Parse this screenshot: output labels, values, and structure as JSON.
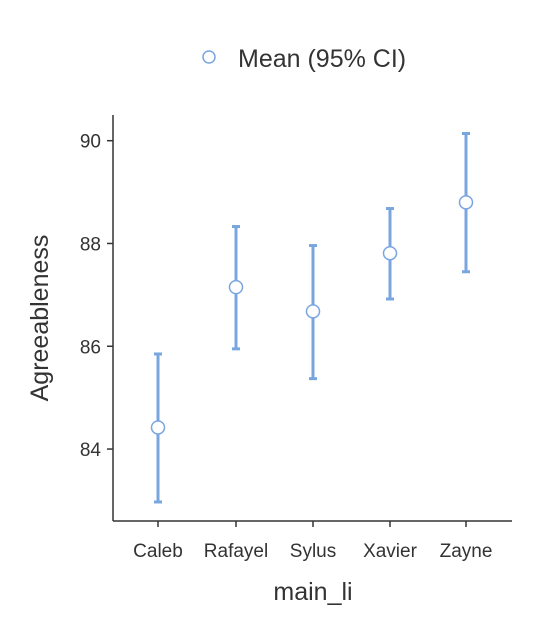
{
  "chart_data": {
    "type": "scatter",
    "title": "",
    "xlabel": "main_li",
    "ylabel": "Agreeableness",
    "categories": [
      "Caleb",
      "Rafayel",
      "Sylus",
      "Xavier",
      "Zayne"
    ],
    "series": [
      {
        "name": "Mean (95% CI)",
        "values": [
          84.42,
          87.15,
          86.68,
          87.81,
          88.8
        ],
        "ci_low": [
          82.97,
          85.95,
          85.37,
          86.92,
          87.45
        ],
        "ci_high": [
          85.85,
          88.33,
          87.96,
          88.68,
          90.14
        ]
      }
    ],
    "ylim": [
      82.6,
      90.5
    ],
    "yticks": [
      "84",
      "86",
      "88",
      "90"
    ],
    "grid": false,
    "legend_position": "top-center",
    "colors": {
      "series": "#7aa6e0",
      "axis": "#333333"
    }
  }
}
